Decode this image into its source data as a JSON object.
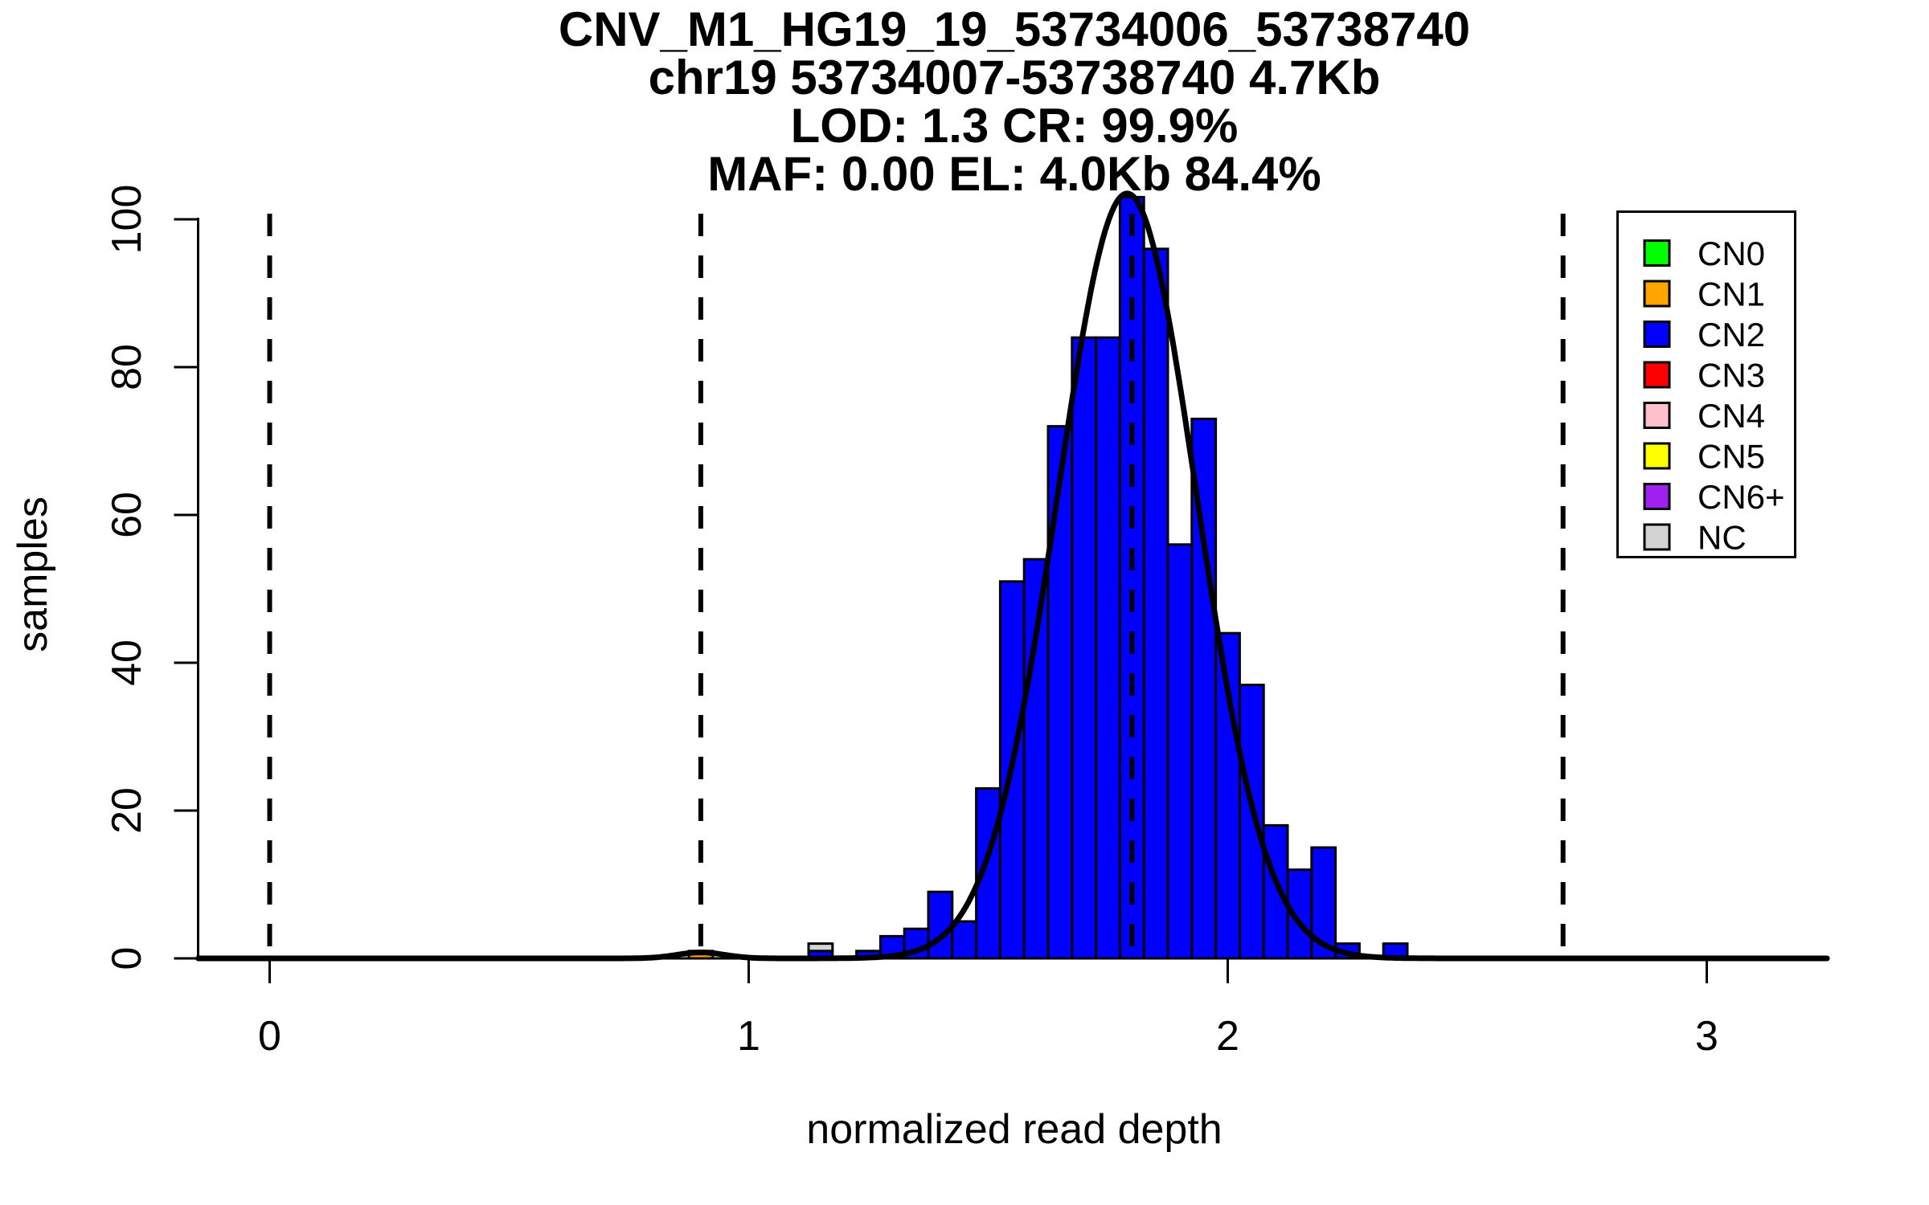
{
  "title": {
    "line1": "CNV_M1_HG19_19_53734006_53738740",
    "line2": "chr19 53734007-53738740 4.7Kb",
    "line3": "LOD: 1.3 CR: 99.9%",
    "line4": "MAF: 0.00 EL: 4.0Kb 84.4%"
  },
  "axes": {
    "x_label": "normalized read depth",
    "y_label": "samples",
    "x_tick_labels": [
      "0",
      "1",
      "2",
      "3"
    ],
    "y_tick_labels": [
      "0",
      "20",
      "40",
      "60",
      "80",
      "100"
    ]
  },
  "legend": {
    "items": [
      {
        "label": "CN0",
        "color": "#00FF00"
      },
      {
        "label": "CN1",
        "color": "#FFA500"
      },
      {
        "label": "CN2",
        "color": "#0000FF"
      },
      {
        "label": "CN3",
        "color": "#FF0000"
      },
      {
        "label": "CN4",
        "color": "#FFC0CB"
      },
      {
        "label": "CN5",
        "color": "#FFFF00"
      },
      {
        "label": "CN6+",
        "color": "#A020F0"
      },
      {
        "label": "NC",
        "color": "#D3D3D3"
      }
    ]
  },
  "chart_data": {
    "type": "bar",
    "subtype": "stacked_histogram_with_density_curve",
    "title": "CNV_M1_HG19_19_53734006_53738740 / chr19 53734007-53738740 4.7Kb / LOD: 1.3 CR: 99.9% / MAF: 0.00 EL: 4.0Kb 84.4%",
    "xlabel": "normalized read depth",
    "ylabel": "samples",
    "xlim": [
      -0.15,
      3.25
    ],
    "ylim": [
      0,
      107
    ],
    "x_ticks": [
      0,
      1,
      2,
      3
    ],
    "y_ticks": [
      0,
      20,
      40,
      60,
      80,
      100
    ],
    "grid": false,
    "legend_position": "top-right",
    "bin_width": 0.05,
    "guide_lines_x": [
      0,
      0.9,
      1.8,
      2.7
    ],
    "guide_line_style": "black dashed vertical",
    "bars": [
      {
        "center": 0.9,
        "segments": [
          {
            "cn": "CN1",
            "count": 1
          }
        ]
      },
      {
        "center": 1.15,
        "segments": [
          {
            "cn": "CN2",
            "count": 1
          },
          {
            "cn": "NC",
            "count": 1
          }
        ]
      },
      {
        "center": 1.25,
        "segments": [
          {
            "cn": "CN2",
            "count": 1
          }
        ]
      },
      {
        "center": 1.3,
        "segments": [
          {
            "cn": "CN2",
            "count": 3
          }
        ]
      },
      {
        "center": 1.35,
        "segments": [
          {
            "cn": "CN2",
            "count": 4
          }
        ]
      },
      {
        "center": 1.4,
        "segments": [
          {
            "cn": "CN2",
            "count": 9
          }
        ]
      },
      {
        "center": 1.45,
        "segments": [
          {
            "cn": "CN2",
            "count": 5
          }
        ]
      },
      {
        "center": 1.5,
        "segments": [
          {
            "cn": "CN2",
            "count": 23
          }
        ]
      },
      {
        "center": 1.55,
        "segments": [
          {
            "cn": "CN2",
            "count": 51
          }
        ]
      },
      {
        "center": 1.6,
        "segments": [
          {
            "cn": "CN2",
            "count": 54
          }
        ]
      },
      {
        "center": 1.65,
        "segments": [
          {
            "cn": "CN2",
            "count": 72
          }
        ]
      },
      {
        "center": 1.7,
        "segments": [
          {
            "cn": "CN2",
            "count": 84
          }
        ]
      },
      {
        "center": 1.75,
        "segments": [
          {
            "cn": "CN2",
            "count": 84
          }
        ]
      },
      {
        "center": 1.8,
        "segments": [
          {
            "cn": "CN2",
            "count": 103
          }
        ]
      },
      {
        "center": 1.85,
        "segments": [
          {
            "cn": "CN2",
            "count": 96
          }
        ]
      },
      {
        "center": 1.9,
        "segments": [
          {
            "cn": "CN2",
            "count": 56
          }
        ]
      },
      {
        "center": 1.95,
        "segments": [
          {
            "cn": "CN2",
            "count": 73
          }
        ]
      },
      {
        "center": 2.0,
        "segments": [
          {
            "cn": "CN2",
            "count": 44
          }
        ]
      },
      {
        "center": 2.05,
        "segments": [
          {
            "cn": "CN2",
            "count": 37
          }
        ]
      },
      {
        "center": 2.1,
        "segments": [
          {
            "cn": "CN2",
            "count": 18
          }
        ]
      },
      {
        "center": 2.15,
        "segments": [
          {
            "cn": "CN2",
            "count": 12
          }
        ]
      },
      {
        "center": 2.2,
        "segments": [
          {
            "cn": "CN2",
            "count": 15
          }
        ]
      },
      {
        "center": 2.25,
        "segments": [
          {
            "cn": "CN2",
            "count": 2
          }
        ]
      },
      {
        "center": 2.35,
        "segments": [
          {
            "cn": "CN2",
            "count": 2
          }
        ]
      }
    ],
    "density_curve": {
      "mu": 1.79,
      "sigma": 0.145,
      "amplitude": 103.5,
      "bumps": [
        {
          "mu": 0.9,
          "sigma": 0.05,
          "amplitude": 0.8
        }
      ]
    }
  }
}
